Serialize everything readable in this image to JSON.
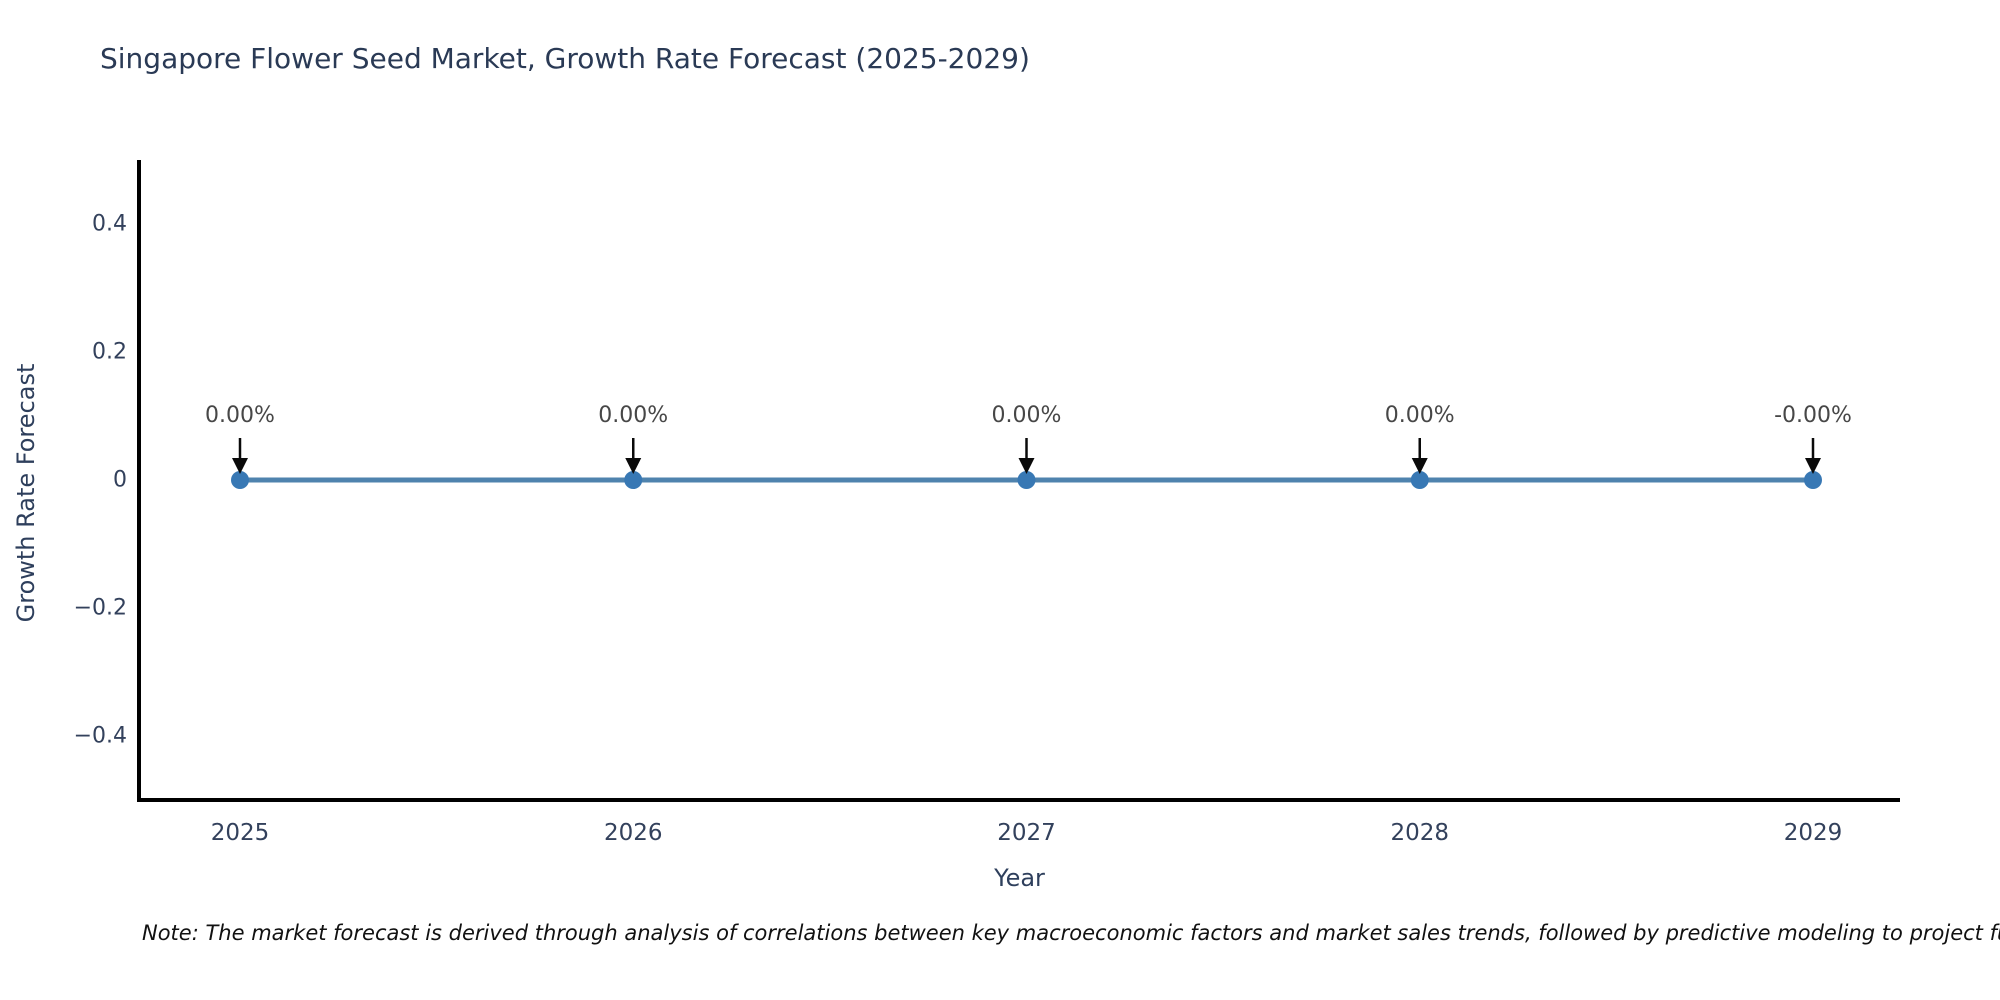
{
  "chart_data": {
    "type": "line",
    "title": "Singapore Flower Seed Market, Growth Rate Forecast (2025-2029)",
    "xlabel": "Year",
    "ylabel": "Growth Rate Forecast",
    "categories": [
      "2025",
      "2026",
      "2027",
      "2028",
      "2029"
    ],
    "series": [
      {
        "name": "Growth Rate Forecast",
        "values": [
          0.0,
          0.0,
          0.0,
          0.0,
          0.0
        ],
        "point_labels": [
          "0.00%",
          "0.00%",
          "0.00%",
          "0.00%",
          "-0.00%"
        ]
      }
    ],
    "ylim": [
      -0.5,
      0.5
    ],
    "yticks": [
      {
        "value": 0.4,
        "label": "0.4"
      },
      {
        "value": 0.2,
        "label": "0.2"
      },
      {
        "value": 0.0,
        "label": "0"
      },
      {
        "value": -0.2,
        "label": "−0.2"
      },
      {
        "value": -0.4,
        "label": "−0.4"
      }
    ],
    "grid": false,
    "legend": false,
    "annotations_have_arrows": true,
    "colors": {
      "line": "#4f83ae",
      "marker": "#3878b4",
      "axis": "#000000",
      "tick_text": "#33415c",
      "axis_label_text": "#2e3f5c",
      "title_text": "#2a3a55",
      "annotation_text": "#474747",
      "arrow": "#0a0a0a"
    }
  },
  "note": {
    "text": "Note: The market forecast is derived through analysis of correlations between key macroeconomic factors and market sales trends, followed by predictive modeling to project future sales."
  }
}
